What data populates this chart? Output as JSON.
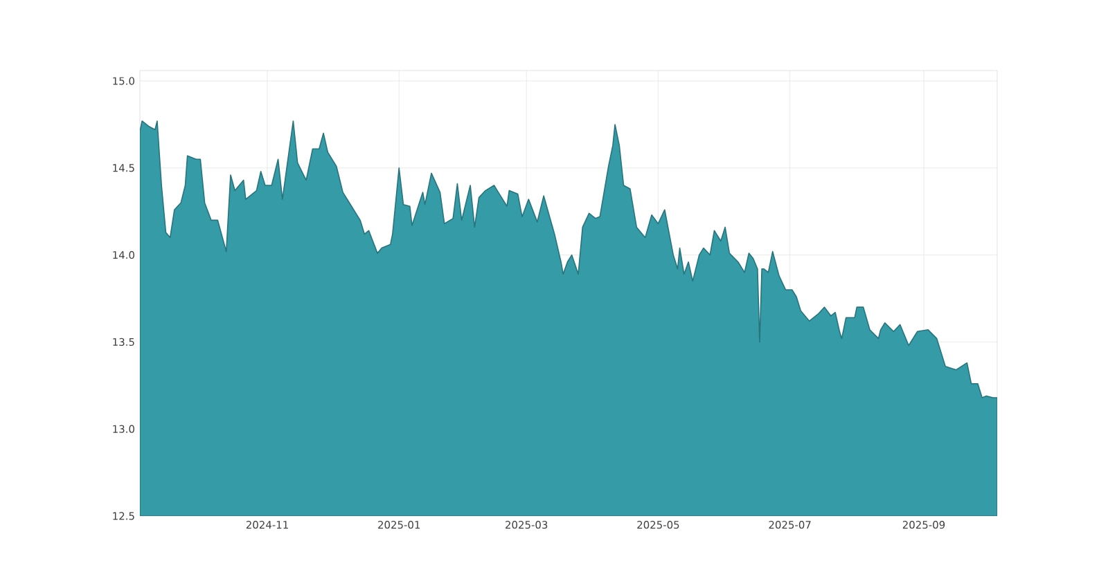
{
  "chart_data": {
    "type": "area",
    "x": [
      "2024-09-03",
      "2024-09-04",
      "2024-09-07",
      "2024-09-10",
      "2024-09-11",
      "2024-09-13",
      "2024-09-15",
      "2024-09-17",
      "2024-09-19",
      "2024-09-22",
      "2024-09-24",
      "2024-09-25",
      "2024-09-29",
      "2024-10-01",
      "2024-10-03",
      "2024-10-06",
      "2024-10-09",
      "2024-10-13",
      "2024-10-15",
      "2024-10-17",
      "2024-10-21",
      "2024-10-22",
      "2024-10-27",
      "2024-10-29",
      "2024-10-31",
      "2024-11-03",
      "2024-11-06",
      "2024-11-08",
      "2024-11-13",
      "2024-11-15",
      "2024-11-19",
      "2024-11-22",
      "2024-11-25",
      "2024-11-27",
      "2024-11-29",
      "2024-12-03",
      "2024-12-06",
      "2024-12-10",
      "2024-12-14",
      "2024-12-16",
      "2024-12-18",
      "2024-12-22",
      "2024-12-24",
      "2024-12-28",
      "2024-12-29",
      "2025-01-01",
      "2025-01-03",
      "2025-01-06",
      "2025-01-07",
      "2025-01-12",
      "2025-01-13",
      "2025-01-16",
      "2025-01-20",
      "2025-01-22",
      "2025-01-26",
      "2025-01-28",
      "2025-01-30",
      "2025-02-03",
      "2025-02-05",
      "2025-02-07",
      "2025-02-10",
      "2025-02-14",
      "2025-02-16",
      "2025-02-20",
      "2025-02-21",
      "2025-02-25",
      "2025-02-27",
      "2025-03-02",
      "2025-03-06",
      "2025-03-09",
      "2025-03-14",
      "2025-03-17",
      "2025-03-18",
      "2025-03-20",
      "2025-03-22",
      "2025-03-25",
      "2025-03-27",
      "2025-03-30",
      "2025-04-02",
      "2025-04-04",
      "2025-04-08",
      "2025-04-10",
      "2025-04-11",
      "2025-04-13",
      "2025-04-15",
      "2025-04-18",
      "2025-04-21",
      "2025-04-25",
      "2025-04-28",
      "2025-05-01",
      "2025-05-04",
      "2025-05-08",
      "2025-05-10",
      "2025-05-11",
      "2025-05-13",
      "2025-05-15",
      "2025-05-17",
      "2025-05-20",
      "2025-05-22",
      "2025-05-25",
      "2025-05-27",
      "2025-05-30",
      "2025-06-01",
      "2025-06-03",
      "2025-06-07",
      "2025-06-10",
      "2025-06-12",
      "2025-06-14",
      "2025-06-16",
      "2025-06-17",
      "2025-06-18",
      "2025-06-19",
      "2025-06-21",
      "2025-06-23",
      "2025-06-26",
      "2025-06-29",
      "2025-07-02",
      "2025-07-04",
      "2025-07-06",
      "2025-07-10",
      "2025-07-14",
      "2025-07-17",
      "2025-07-20",
      "2025-07-22",
      "2025-07-24",
      "2025-07-25",
      "2025-07-27",
      "2025-07-31",
      "2025-08-01",
      "2025-08-04",
      "2025-08-07",
      "2025-08-11",
      "2025-08-12",
      "2025-08-14",
      "2025-08-18",
      "2025-08-21",
      "2025-08-25",
      "2025-08-29",
      "2025-09-03",
      "2025-09-07",
      "2025-09-11",
      "2025-09-16",
      "2025-09-21",
      "2025-09-23",
      "2025-09-26",
      "2025-09-28",
      "2025-09-30",
      "2025-10-03",
      "2025-10-05"
    ],
    "series": [
      {
        "color": "#349ba7",
        "values": [
          14.71,
          14.77,
          14.74,
          14.72,
          14.77,
          14.4,
          14.13,
          14.1,
          14.26,
          14.3,
          14.4,
          14.57,
          14.55,
          14.55,
          14.3,
          14.2,
          14.2,
          14.02,
          14.46,
          14.37,
          14.43,
          14.32,
          14.37,
          14.48,
          14.4,
          14.4,
          14.55,
          14.32,
          14.77,
          14.53,
          14.43,
          14.61,
          14.61,
          14.7,
          14.59,
          14.51,
          14.36,
          14.28,
          14.2,
          14.12,
          14.14,
          14.01,
          14.04,
          14.06,
          14.12,
          14.5,
          14.29,
          14.28,
          14.17,
          14.36,
          14.29,
          14.47,
          14.36,
          14.18,
          14.21,
          14.41,
          14.2,
          14.4,
          14.16,
          14.33,
          14.37,
          14.4,
          14.36,
          14.28,
          14.37,
          14.35,
          14.22,
          14.32,
          14.19,
          14.34,
          14.12,
          13.96,
          13.89,
          13.96,
          14.0,
          13.89,
          14.16,
          14.24,
          14.21,
          14.22,
          14.51,
          14.63,
          14.75,
          14.63,
          14.4,
          14.38,
          14.16,
          14.1,
          14.23,
          14.18,
          14.26,
          14.0,
          13.92,
          14.04,
          13.89,
          13.96,
          13.85,
          14.0,
          14.04,
          14.0,
          14.14,
          14.08,
          14.16,
          14.01,
          13.96,
          13.9,
          14.01,
          13.98,
          13.92,
          13.5,
          13.92,
          13.92,
          13.9,
          14.02,
          13.88,
          13.8,
          13.8,
          13.76,
          13.68,
          13.62,
          13.66,
          13.7,
          13.65,
          13.67,
          13.56,
          13.52,
          13.64,
          13.64,
          13.7,
          13.7,
          13.57,
          13.52,
          13.57,
          13.61,
          13.56,
          13.6,
          13.48,
          13.56,
          13.57,
          13.52,
          13.36,
          13.34,
          13.38,
          13.26,
          13.26,
          13.18,
          13.19,
          13.18,
          13.18
        ]
      }
    ],
    "xlim": [
      "2024-09-03",
      "2025-10-05"
    ],
    "xticks": [
      {
        "value": "2024-11-01",
        "label": "2024-11"
      },
      {
        "value": "2025-01-01",
        "label": "2025-01"
      },
      {
        "value": "2025-03-01",
        "label": "2025-03"
      },
      {
        "value": "2025-05-01",
        "label": "2025-05"
      },
      {
        "value": "2025-07-01",
        "label": "2025-07"
      },
      {
        "value": "2025-09-01",
        "label": "2025-09"
      }
    ],
    "ylim": [
      12.5,
      15.06
    ],
    "yticks": [
      {
        "value": 12.5,
        "label": "12.5"
      },
      {
        "value": 13.0,
        "label": "13.0"
      },
      {
        "value": 13.5,
        "label": "13.5"
      },
      {
        "value": 14.0,
        "label": "14.0"
      },
      {
        "value": 14.5,
        "label": "14.5"
      },
      {
        "value": 15.0,
        "label": "15.0"
      }
    ],
    "grid": true
  }
}
